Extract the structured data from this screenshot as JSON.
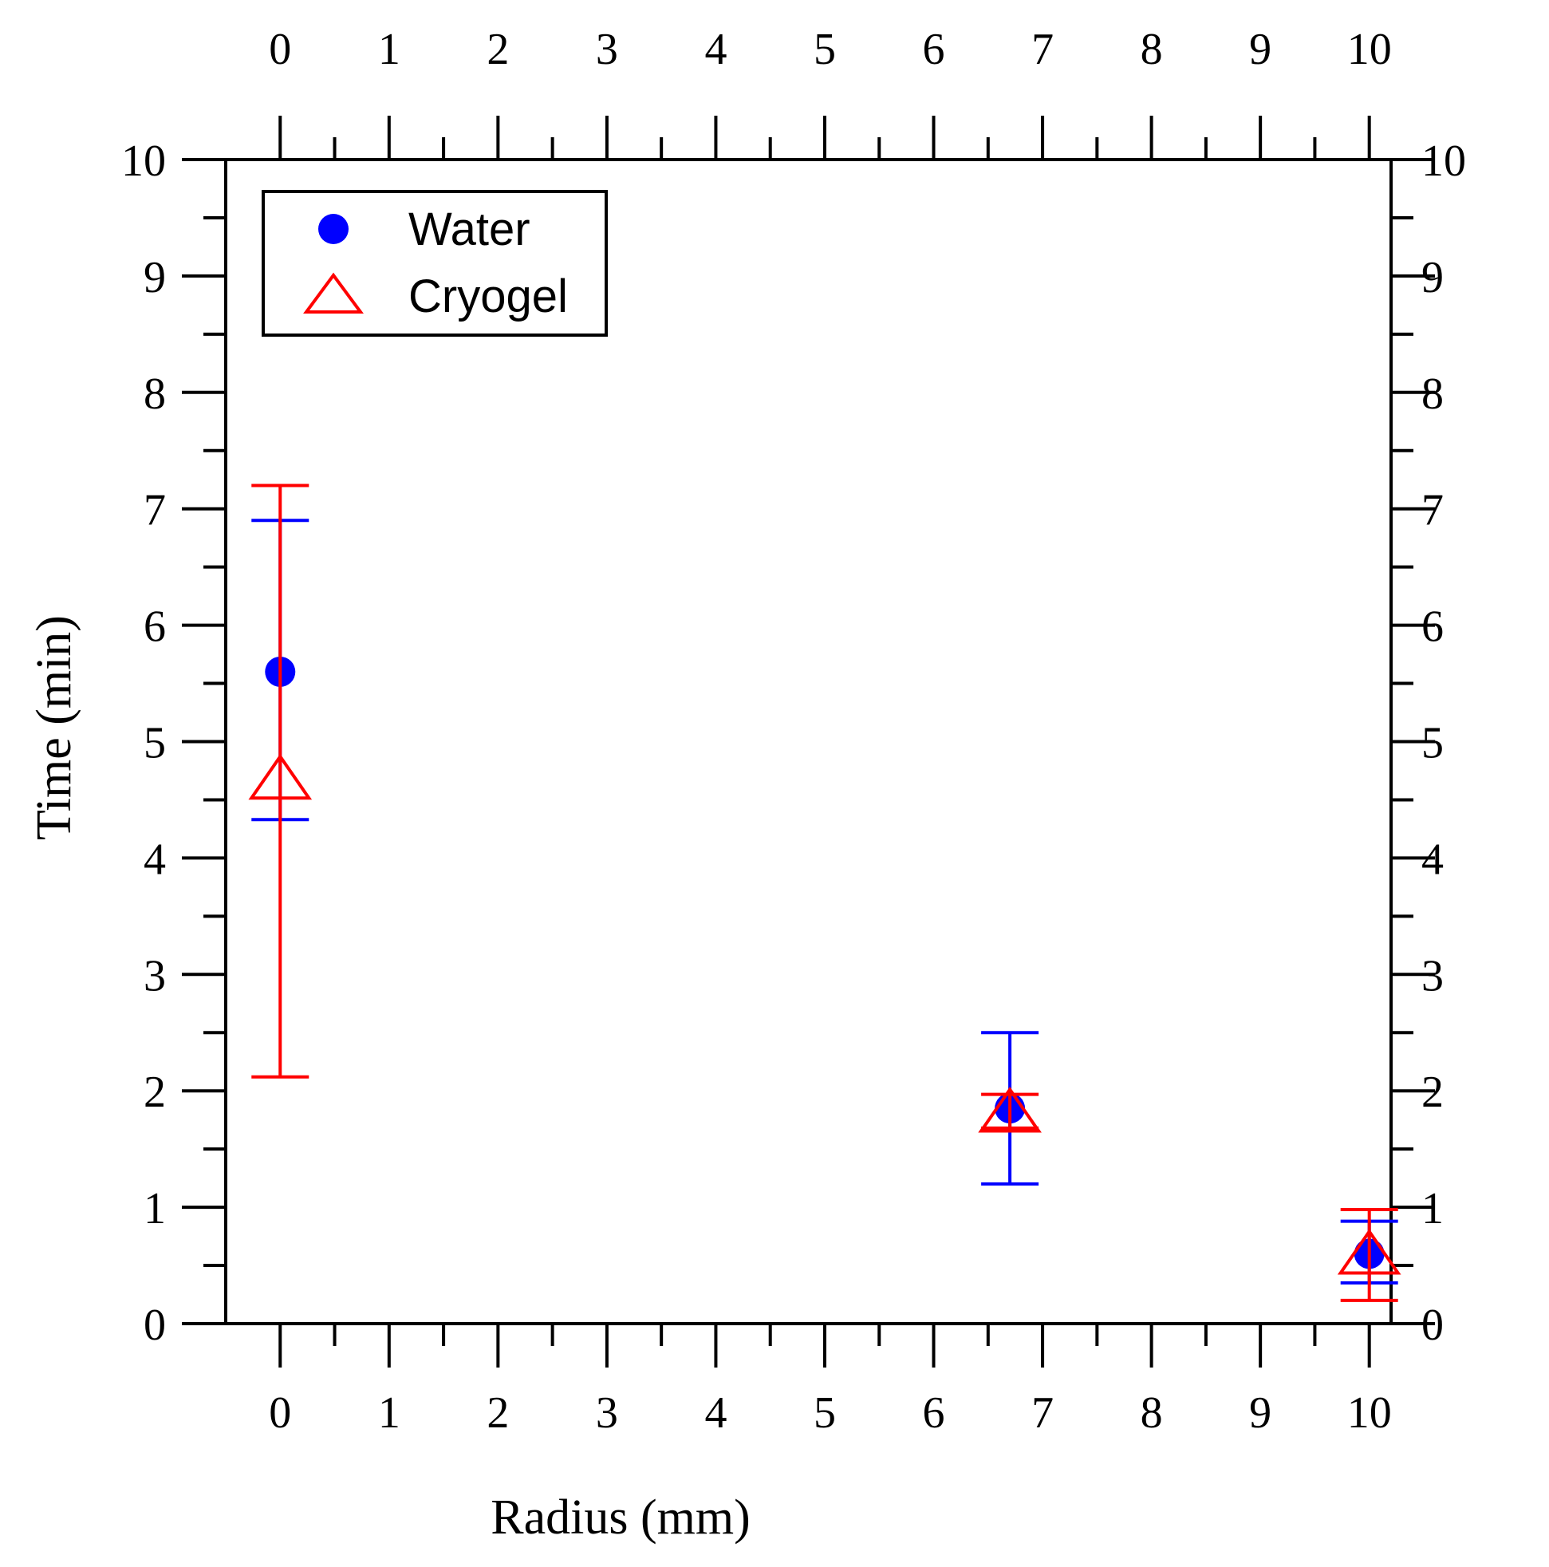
{
  "chart_data": {
    "type": "scatter",
    "title": "",
    "xlabel": "Radius (mm)",
    "ylabel": "Time (min)",
    "xlim": [
      -0.5,
      10.2
    ],
    "ylim": [
      0,
      10
    ],
    "x_ticks": [
      "0",
      "1",
      "2",
      "3",
      "4",
      "5",
      "6",
      "7",
      "8",
      "9",
      "10"
    ],
    "y_ticks": [
      "0",
      "1",
      "2",
      "3",
      "4",
      "5",
      "6",
      "7",
      "8",
      "9",
      "10"
    ],
    "grid": false,
    "legend_position": "top-left",
    "series": [
      {
        "name": "Water",
        "marker": "filled-circle",
        "color": "#0000ff",
        "points": [
          {
            "x": 0,
            "y": 5.6,
            "err_low": 4.33,
            "err_high": 6.9
          },
          {
            "x": 6.7,
            "y": 1.85,
            "err_low": 1.2,
            "err_high": 2.5
          },
          {
            "x": 10,
            "y": 0.6,
            "err_low": 0.35,
            "err_high": 0.88
          }
        ]
      },
      {
        "name": "Cryogel",
        "marker": "open-triangle",
        "color": "#ff0000",
        "points": [
          {
            "x": 0,
            "y": 4.68,
            "err_low": 2.12,
            "err_high": 7.2
          },
          {
            "x": 6.7,
            "y": 1.82,
            "err_low": 1.68,
            "err_high": 1.97
          },
          {
            "x": 10,
            "y": 0.6,
            "err_low": 0.2,
            "err_high": 0.98
          }
        ]
      }
    ]
  }
}
